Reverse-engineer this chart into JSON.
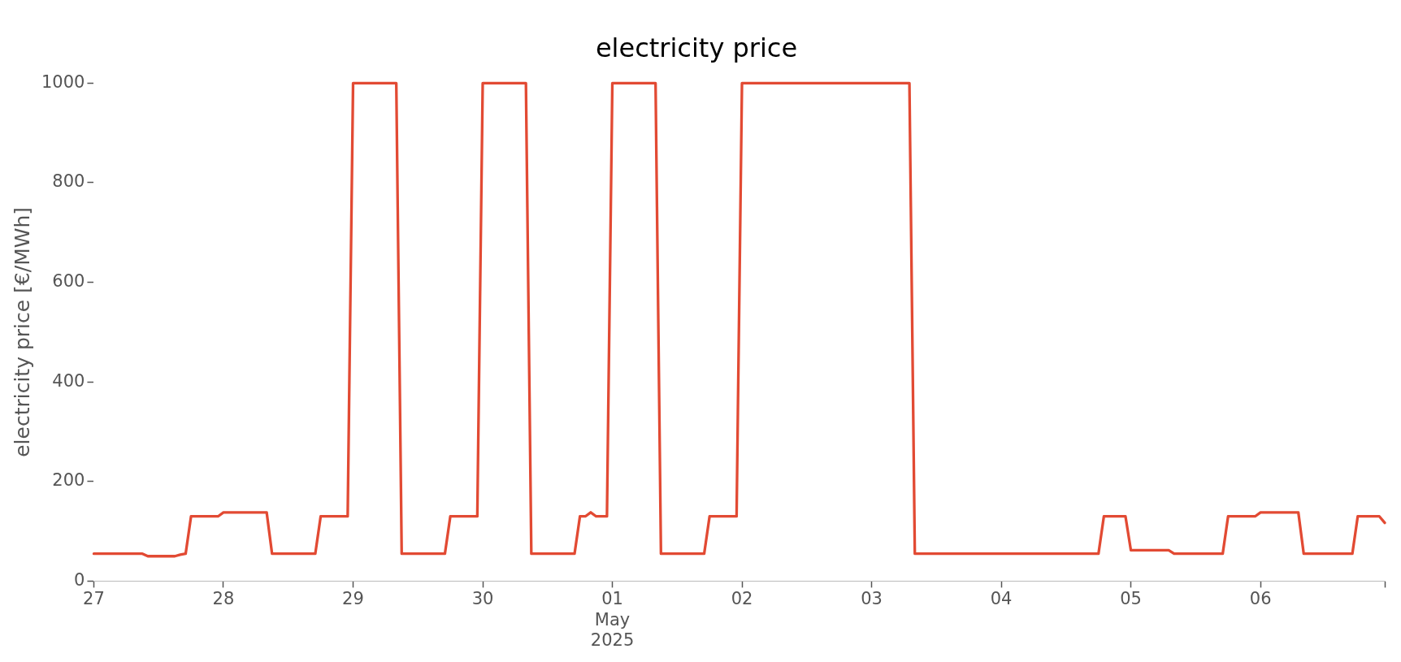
{
  "chart_data": {
    "type": "line",
    "title": "electricity price",
    "ylabel": "electricity price [€/MWh]",
    "x": [
      "2025-04-27T00:00",
      "2025-04-27T09:00",
      "2025-04-27T10:00",
      "2025-04-27T15:00",
      "2025-04-27T16:00",
      "2025-04-27T17:00",
      "2025-04-27T18:00",
      "2025-04-27T23:00",
      "2025-04-28T00:00",
      "2025-04-28T08:00",
      "2025-04-28T09:00",
      "2025-04-28T17:00",
      "2025-04-28T18:00",
      "2025-04-28T23:00",
      "2025-04-29T00:00",
      "2025-04-29T08:00",
      "2025-04-29T09:00",
      "2025-04-29T17:00",
      "2025-04-29T18:00",
      "2025-04-29T23:00",
      "2025-04-30T00:00",
      "2025-04-30T08:00",
      "2025-04-30T09:00",
      "2025-04-30T17:00",
      "2025-04-30T18:00",
      "2025-04-30T19:00",
      "2025-04-30T20:00",
      "2025-04-30T21:00",
      "2025-04-30T23:00",
      "2025-05-01T00:00",
      "2025-05-01T08:00",
      "2025-05-01T09:00",
      "2025-05-01T17:00",
      "2025-05-01T18:00",
      "2025-05-01T23:00",
      "2025-05-02T00:00",
      "2025-05-03T07:00",
      "2025-05-03T08:00",
      "2025-05-04T18:00",
      "2025-05-04T19:00",
      "2025-05-04T23:00",
      "2025-05-05T00:00",
      "2025-05-05T07:00",
      "2025-05-05T08:00",
      "2025-05-05T17:00",
      "2025-05-05T18:00",
      "2025-05-05T23:00",
      "2025-05-06T00:00",
      "2025-05-06T07:00",
      "2025-05-06T08:00",
      "2025-05-06T17:00",
      "2025-05-06T18:00",
      "2025-05-06T22:00",
      "2025-05-06T23:00"
    ],
    "series": [
      {
        "color": "#e24a33",
        "values": [
          55,
          55,
          50,
          50,
          53,
          55,
          130,
          130,
          138,
          138,
          55,
          55,
          130,
          130,
          1000,
          1000,
          55,
          55,
          130,
          130,
          1000,
          1000,
          55,
          55,
          130,
          130,
          138,
          130,
          130,
          1000,
          1000,
          55,
          55,
          130,
          130,
          1000,
          1000,
          55,
          55,
          130,
          130,
          62,
          62,
          55,
          55,
          130,
          130,
          138,
          138,
          55,
          55,
          130,
          130,
          117
        ]
      }
    ],
    "xlim": [
      "2025-04-27T00:00",
      "2025-05-06T23:00"
    ],
    "xticks": [
      {
        "value": "2025-04-27",
        "label": "27"
      },
      {
        "value": "2025-04-28",
        "label": "28"
      },
      {
        "value": "2025-04-29",
        "label": "29"
      },
      {
        "value": "2025-04-30",
        "label": "30"
      },
      {
        "value": "2025-05-01",
        "label": "01\nMay\n2025"
      },
      {
        "value": "2025-05-02",
        "label": "02"
      },
      {
        "value": "2025-05-03",
        "label": "03"
      },
      {
        "value": "2025-05-04",
        "label": "04"
      },
      {
        "value": "2025-05-05",
        "label": "05"
      },
      {
        "value": "2025-05-06",
        "label": "06"
      },
      {
        "value": "2025-05-06T23:00",
        "label": null
      }
    ],
    "ylim": [
      0,
      1000
    ],
    "yticks": [
      0,
      200,
      400,
      600,
      800,
      1000
    ],
    "grid": false,
    "legend": false,
    "marker": "none",
    "line_style": "solid"
  }
}
